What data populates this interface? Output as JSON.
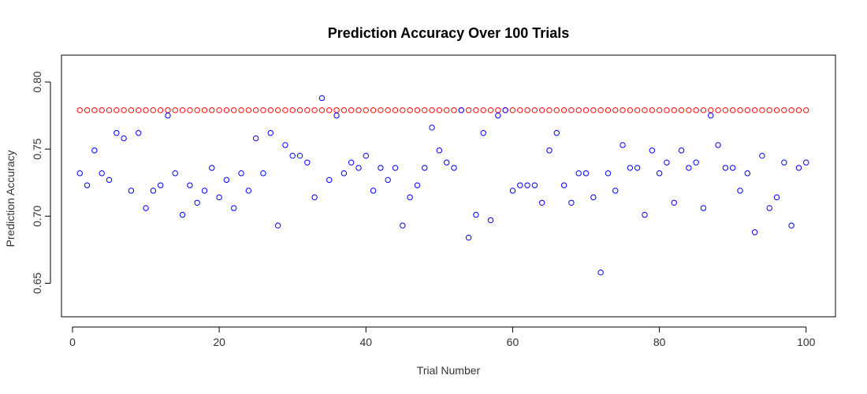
{
  "chart_data": {
    "type": "scatter",
    "title": "Prediction Accuracy Over 100 Trials",
    "xlabel": "Trial Number",
    "ylabel": "Prediction Accuracy",
    "xlim": [
      -1.5,
      104
    ],
    "ylim": [
      0.625,
      0.82
    ],
    "xticks": [
      0,
      20,
      40,
      60,
      80,
      100
    ],
    "xtick_labels": [
      "0",
      "20",
      "40",
      "60",
      "80",
      "100"
    ],
    "yticks": [
      0.65,
      0.7,
      0.75,
      0.8
    ],
    "ytick_labels": [
      "0.65",
      "0.70",
      "0.75",
      "0.80"
    ],
    "grid": false,
    "x": [
      1,
      2,
      3,
      4,
      5,
      6,
      7,
      8,
      9,
      10,
      11,
      12,
      13,
      14,
      15,
      16,
      17,
      18,
      19,
      20,
      21,
      22,
      23,
      24,
      25,
      26,
      27,
      28,
      29,
      30,
      31,
      32,
      33,
      34,
      35,
      36,
      37,
      38,
      39,
      40,
      41,
      42,
      43,
      44,
      45,
      46,
      47,
      48,
      49,
      50,
      51,
      52,
      53,
      54,
      55,
      56,
      57,
      58,
      59,
      60,
      61,
      62,
      63,
      64,
      65,
      66,
      67,
      68,
      69,
      70,
      71,
      72,
      73,
      74,
      75,
      76,
      77,
      78,
      79,
      80,
      81,
      82,
      83,
      84,
      85,
      86,
      87,
      88,
      89,
      90,
      91,
      92,
      93,
      94,
      95,
      96,
      97,
      98,
      99,
      100
    ],
    "series": [
      {
        "color": "#ff0000",
        "marker": "open-circle",
        "constant_value": 0.779
      },
      {
        "color": "#0000ff",
        "marker": "open-circle",
        "values": [
          0.732,
          0.723,
          0.749,
          0.732,
          0.727,
          0.762,
          0.758,
          0.719,
          0.762,
          0.706,
          0.719,
          0.723,
          0.775,
          0.732,
          0.701,
          0.723,
          0.71,
          0.719,
          0.736,
          0.714,
          0.727,
          0.706,
          0.732,
          0.719,
          0.758,
          0.732,
          0.762,
          0.693,
          0.753,
          0.745,
          0.745,
          0.74,
          0.714,
          0.788,
          0.727,
          0.775,
          0.732,
          0.74,
          0.736,
          0.745,
          0.719,
          0.736,
          0.727,
          0.736,
          0.693,
          0.714,
          0.723,
          0.736,
          0.766,
          0.749,
          0.74,
          0.736,
          0.779,
          0.684,
          0.701,
          0.762,
          0.697,
          0.775,
          0.779,
          0.719,
          0.723,
          0.723,
          0.723,
          0.71,
          0.749,
          0.762,
          0.723,
          0.71,
          0.732,
          0.732,
          0.714,
          0.658,
          0.732,
          0.719,
          0.753,
          0.736,
          0.736,
          0.701,
          0.749,
          0.732,
          0.74,
          0.71,
          0.749,
          0.736,
          0.74,
          0.706,
          0.775,
          0.753,
          0.736,
          0.736,
          0.719,
          0.732,
          0.688,
          0.745,
          0.706,
          0.714,
          0.74,
          0.693,
          0.736,
          0.74
        ]
      }
    ]
  }
}
